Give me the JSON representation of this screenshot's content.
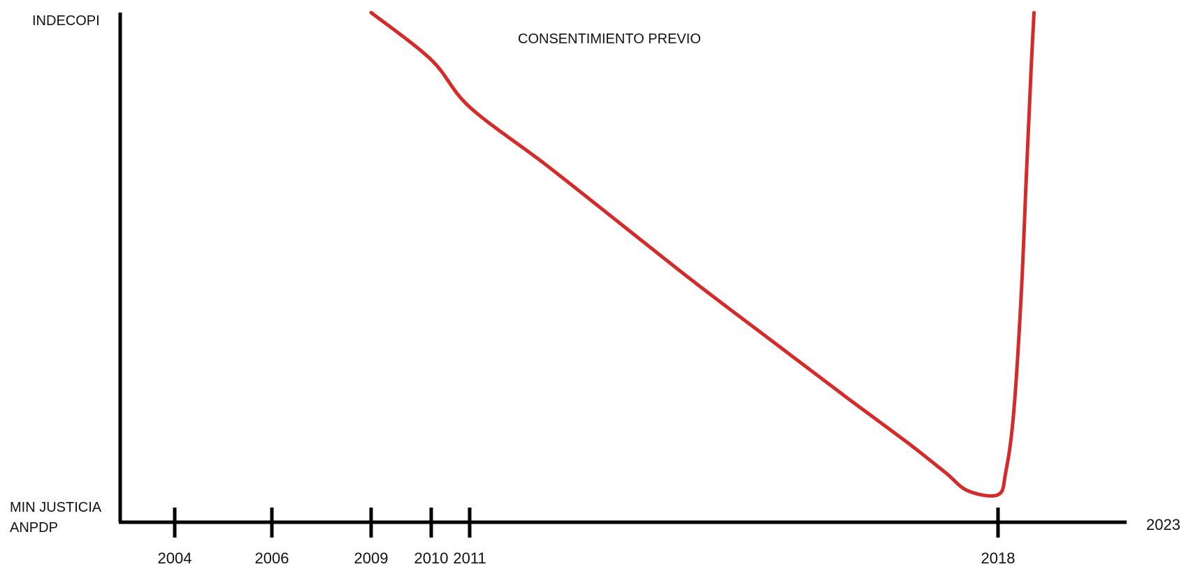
{
  "chart_data": {
    "type": "line",
    "title": "CONSENTIMIENTO PREVIO",
    "y_axis": {
      "top_label": "INDECOPI",
      "bottom_label_lines": [
        "MIN JUSTICIA",
        "ANPDP"
      ],
      "range": [
        0,
        1
      ]
    },
    "x_axis": {
      "ticks": [
        "2004",
        "2006",
        "2009",
        "2010",
        "2011",
        "2018"
      ],
      "end_label": "2023",
      "range": [
        2003,
        2023
      ]
    },
    "series": [
      {
        "color": "#d42a2a",
        "x": [
          2009.0,
          2010.0,
          2011.0,
          2012.0,
          2013.0,
          2014.0,
          2015.0,
          2016.0,
          2016.8,
          2017.3,
          2017.6,
          2018.0,
          2018.3,
          2018.6,
          2018.9,
          2019.1,
          2019.3,
          2019.4
        ],
        "y": [
          1.0,
          0.905,
          0.81,
          0.695,
          0.575,
          0.455,
          0.34,
          0.225,
          0.135,
          0.075,
          0.038,
          0.03,
          0.075,
          0.19,
          0.43,
          0.67,
          0.9,
          1.0
        ]
      }
    ],
    "grid": false,
    "legend": "none"
  }
}
